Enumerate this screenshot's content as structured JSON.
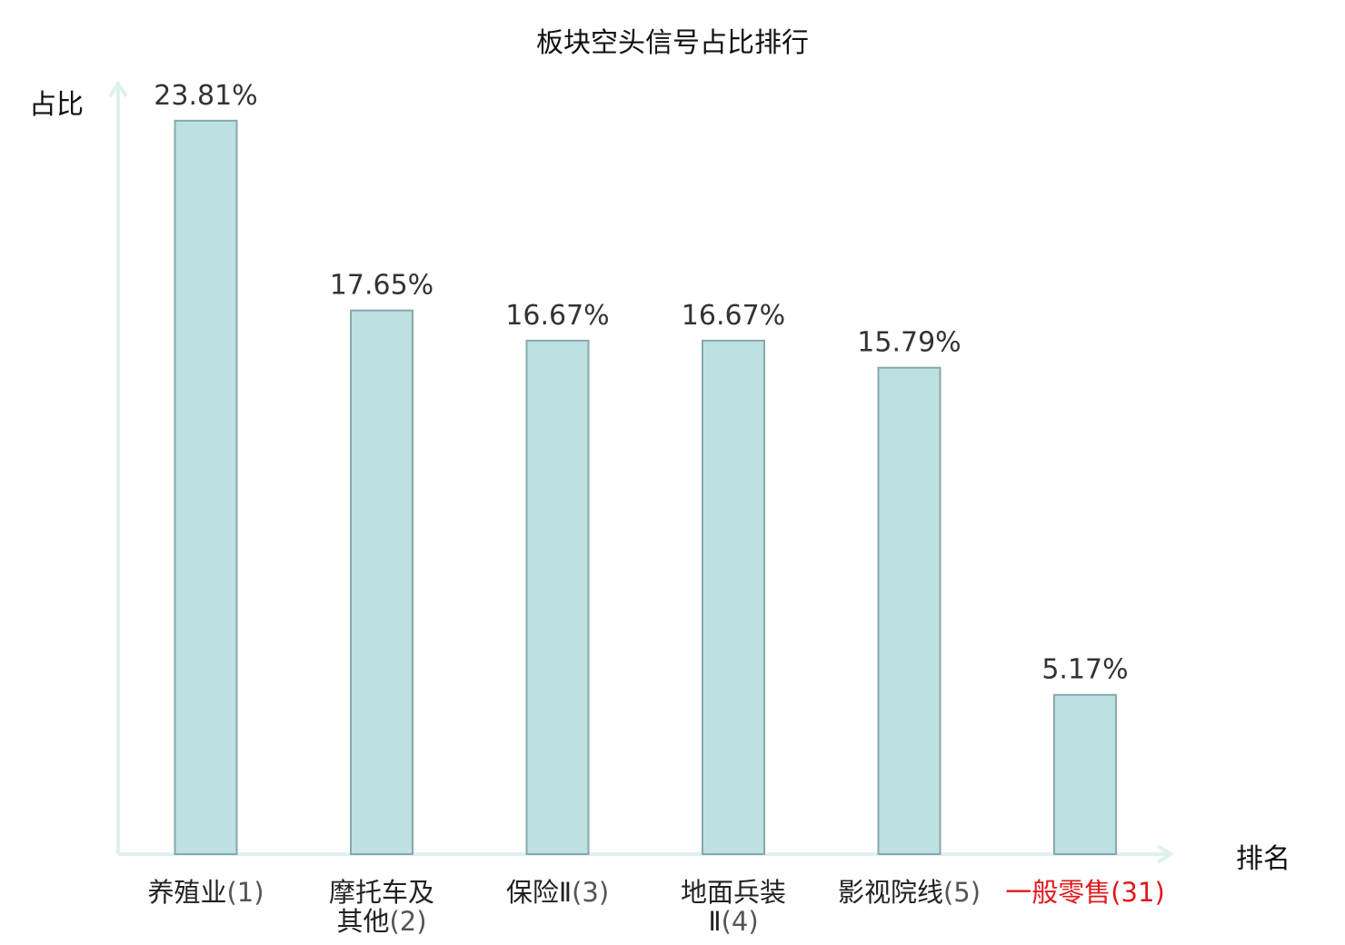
{
  "chart_data": {
    "type": "bar",
    "title": "板块空头信号占比排行",
    "ylabel": "占比",
    "xlabel": "排名",
    "ylim": [
      0,
      25
    ],
    "value_suffix": "%",
    "grid": false,
    "categories": [
      {
        "lines": [
          "养殖业"
        ],
        "rank": "(1)",
        "highlight": false
      },
      {
        "lines": [
          "摩托车及",
          "其他"
        ],
        "rank": "(2)",
        "highlight": false
      },
      {
        "lines": [
          "保险Ⅱ"
        ],
        "rank": "(3)",
        "highlight": false
      },
      {
        "lines": [
          "地面兵装",
          "Ⅱ"
        ],
        "rank": "(4)",
        "highlight": false
      },
      {
        "lines": [
          "影视院线"
        ],
        "rank": "(5)",
        "highlight": false
      },
      {
        "lines": [
          "一般零售"
        ],
        "rank": "(31)",
        "highlight": true
      }
    ],
    "values": [
      23.81,
      17.65,
      16.67,
      16.67,
      15.79,
      5.17
    ],
    "value_labels": [
      "23.81%",
      "17.65%",
      "16.67%",
      "16.67%",
      "15.79%",
      "5.17%"
    ],
    "colors": {
      "bar_fill": "#bde0e2",
      "bar_stroke": "#86a9ab",
      "axis": "#dff1ef",
      "highlight_text": "#e0191d"
    }
  }
}
